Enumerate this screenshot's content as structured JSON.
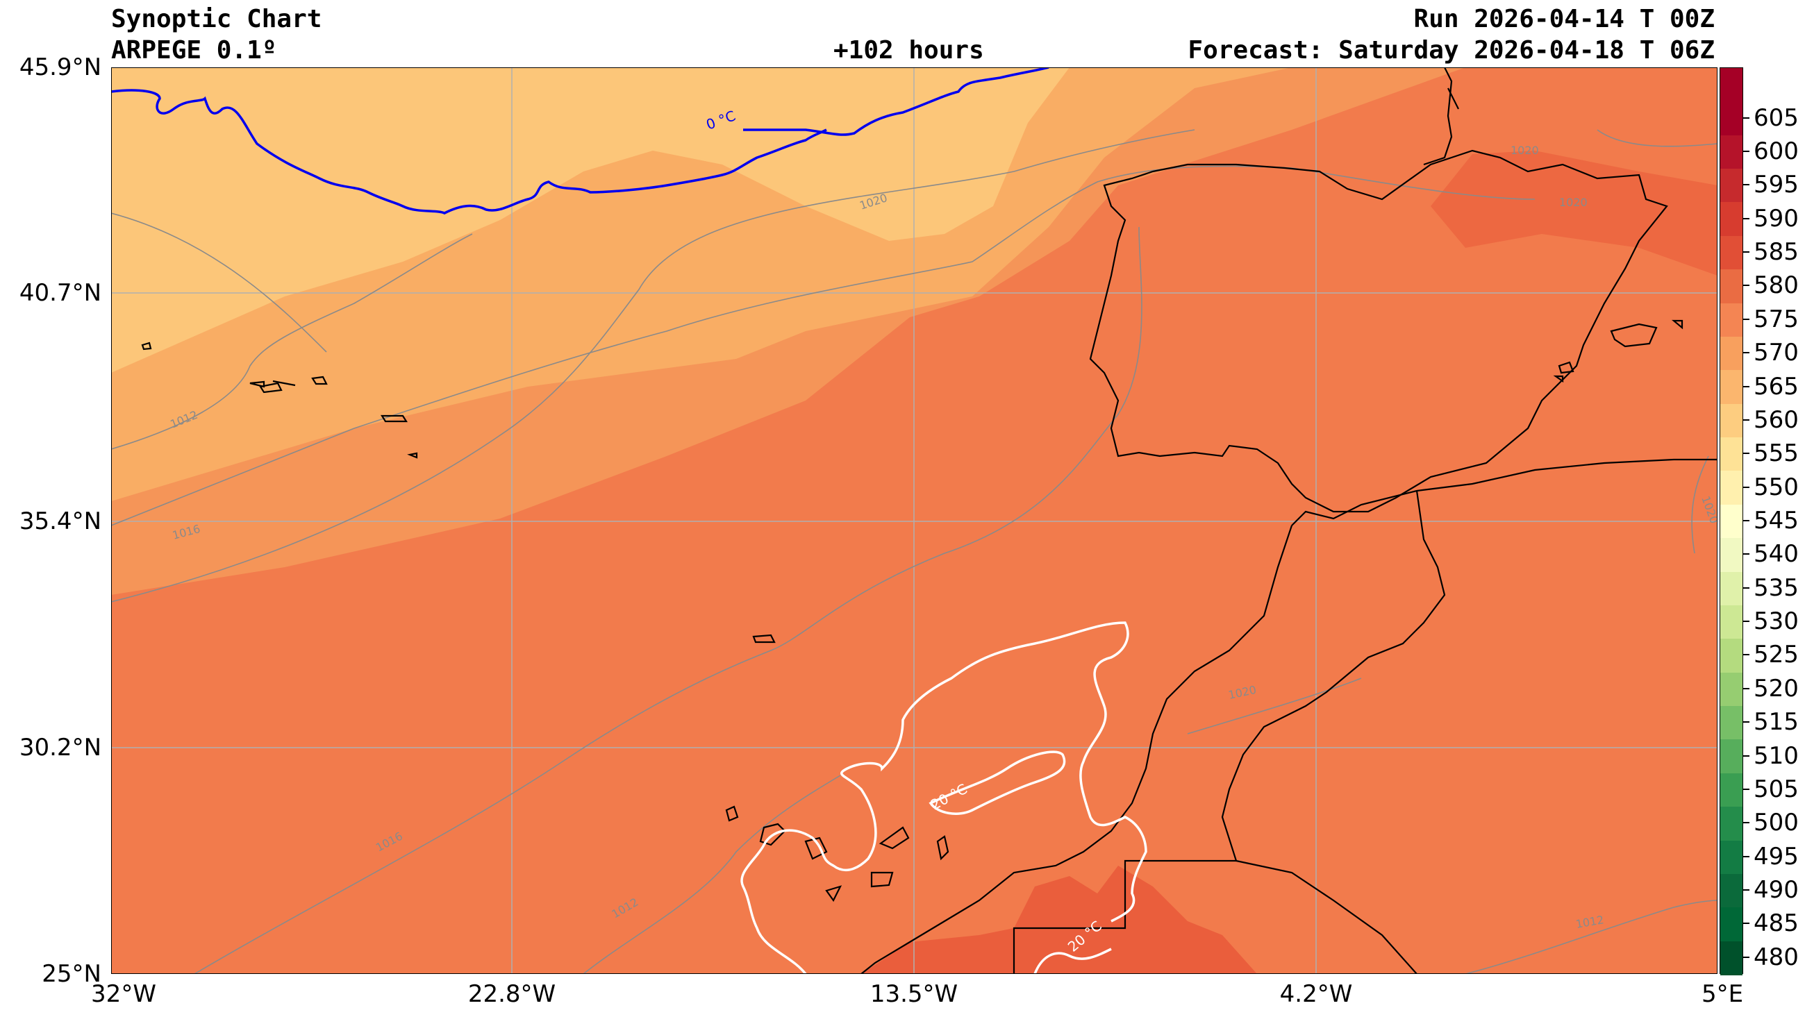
{
  "header": {
    "title_line1": "Synoptic Chart",
    "title_line2": "ARPEGE 0.1º",
    "lead": "+102 hours",
    "run": "Run 2026-04-14 T 00Z",
    "forecast": "Forecast: Saturday 2026-04-18 T 06Z"
  },
  "axes": {
    "lat_ticks": [
      "45.9°N",
      "40.7°N",
      "35.4°N",
      "30.2°N",
      "25°N"
    ],
    "lon_ticks": [
      "32°W",
      "22.8°W",
      "13.5°W",
      "4.2°W",
      "5°E"
    ],
    "lat_range": [
      25,
      45.9
    ],
    "lon_range": [
      -32,
      5
    ]
  },
  "colorbar": {
    "labels": [
      "605",
      "600",
      "595",
      "590",
      "585",
      "580",
      "575",
      "570",
      "565",
      "560",
      "555",
      "550",
      "545",
      "540",
      "535",
      "530",
      "525",
      "520",
      "515",
      "510",
      "505",
      "500",
      "495",
      "490",
      "485",
      "480"
    ],
    "colors": [
      "#a50026",
      "#b5132a",
      "#c62a2d",
      "#d73c2f",
      "#e14f36",
      "#ea6c43",
      "#f48553",
      "#f8a05e",
      "#fbb66e",
      "#fdcd80",
      "#fee296",
      "#fff0ae",
      "#ffffcc",
      "#f1f9c2",
      "#e0f1aa",
      "#cde894",
      "#b4db7f",
      "#96cd71",
      "#77bf67",
      "#57ae5c",
      "#3a9e52",
      "#248d4b",
      "#137c44",
      "#0b6a3b",
      "#006837",
      "#00512b"
    ]
  },
  "isotherm_labels": {
    "zero": "0 °C",
    "twenty_a": "20 °C",
    "twenty_b": "20 °C"
  },
  "isobar_labels": [
    "1020",
    "1020",
    "1020",
    "1012",
    "1016",
    "1016",
    "1012",
    "1020",
    "1012",
    "1020"
  ],
  "colors": {
    "fill_565": "#fcc679",
    "fill_570": "#f9ad64",
    "fill_575": "#f59558",
    "fill_580": "#f27b4c",
    "fill_585": "#ed6841",
    "zero_isotherm": "#0000ee",
    "twenty_isotherm": "#ffffff",
    "isobar": "#8a8a8a",
    "coast": "#000000"
  }
}
